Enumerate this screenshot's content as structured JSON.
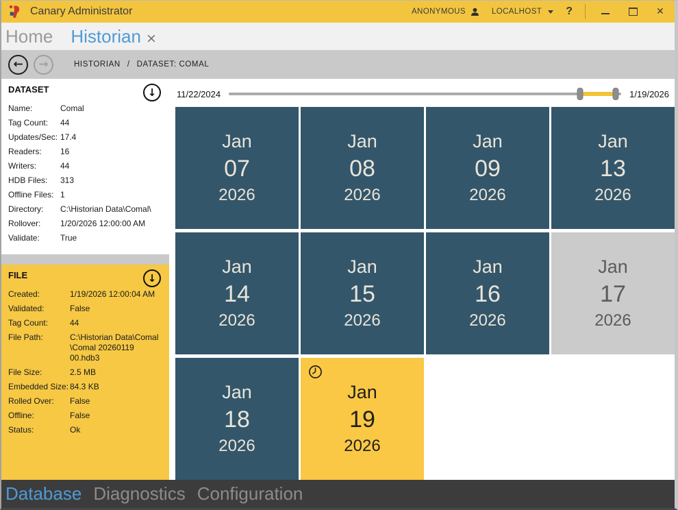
{
  "titlebar": {
    "title": "Canary Administrator",
    "user": "ANONYMOUS",
    "host": "LOCALHOST",
    "help": "?"
  },
  "icons": {
    "back": "←",
    "forward": "→",
    "collapse": "↓",
    "close_tab": "×",
    "close_win": "✕"
  },
  "tabs": [
    {
      "label": "Home",
      "active": false,
      "closable": false
    },
    {
      "label": "Historian",
      "active": true,
      "closable": true
    }
  ],
  "nav": {
    "separator": "/",
    "breadcrumb": [
      "HISTORIAN",
      "DATASET: COMAL"
    ]
  },
  "dataset_panel": {
    "title": "DATASET",
    "rows": [
      {
        "label": "Name:",
        "value": "Comal"
      },
      {
        "label": "Tag Count:",
        "value": "44"
      },
      {
        "label": "Updates/Sec:",
        "value": "17.4"
      },
      {
        "label": "Readers:",
        "value": "16"
      },
      {
        "label": "Writers:",
        "value": "44"
      },
      {
        "label": "HDB Files:",
        "value": "313"
      },
      {
        "label": "Offline Files:",
        "value": "1"
      },
      {
        "label": "Directory:",
        "value": "C:\\Historian Data\\Comal\\"
      },
      {
        "label": "Rollover:",
        "value": "1/20/2026 12:00:00 AM"
      },
      {
        "label": "Validate:",
        "value": "True"
      }
    ]
  },
  "file_panel": {
    "title": "FILE",
    "rows": [
      {
        "label": "Created:",
        "value": "1/19/2026 12:00:04 AM"
      },
      {
        "label": "Validated:",
        "value": "False"
      },
      {
        "label": "Tag Count:",
        "value": "44"
      },
      {
        "label": "File Path:",
        "value": "C:\\Historian Data\\Comal\n\\Comal 20260119 00.hdb3"
      },
      {
        "label": "File Size:",
        "value": "2.5 MB"
      },
      {
        "label": "Embedded Size:",
        "value": "84.3 KB"
      },
      {
        "label": "Rolled Over:",
        "value": "False"
      },
      {
        "label": "Offline:",
        "value": "False"
      },
      {
        "label": "Status:",
        "value": "Ok"
      }
    ]
  },
  "slider": {
    "start_label": "11/22/2024",
    "end_label": "1/19/2026",
    "range_start_pct": 89.5,
    "range_end_pct": 98.5
  },
  "calendar": {
    "tiles": [
      {
        "month": "Jan",
        "day": "07",
        "year": "2026",
        "state": "available",
        "clock": false
      },
      {
        "month": "Jan",
        "day": "08",
        "year": "2026",
        "state": "available",
        "clock": false
      },
      {
        "month": "Jan",
        "day": "09",
        "year": "2026",
        "state": "available",
        "clock": false
      },
      {
        "month": "Jan",
        "day": "13",
        "year": "2026",
        "state": "available",
        "clock": false
      },
      {
        "month": "Jan",
        "day": "14",
        "year": "2026",
        "state": "available",
        "clock": false
      },
      {
        "month": "Jan",
        "day": "15",
        "year": "2026",
        "state": "available",
        "clock": false
      },
      {
        "month": "Jan",
        "day": "16",
        "year": "2026",
        "state": "available",
        "clock": false
      },
      {
        "month": "Jan",
        "day": "17",
        "year": "2026",
        "state": "offline",
        "clock": false
      },
      {
        "month": "Jan",
        "day": "18",
        "year": "2026",
        "state": "available",
        "clock": false
      },
      {
        "month": "Jan",
        "day": "19",
        "year": "2026",
        "state": "active",
        "clock": true
      }
    ]
  },
  "bottom_tabs": [
    {
      "label": "Database",
      "active": true
    },
    {
      "label": "Diagnostics",
      "active": false
    },
    {
      "label": "Configuration",
      "active": false
    }
  ],
  "colors": {
    "titlebar_yellow": "#F3C53F",
    "panel_yellow": "#F6C844",
    "tile_yellow": "#FAC844",
    "tile_teal": "#33566A",
    "tile_gray": "#CBCBCB",
    "active_blue": "#4D9BD8",
    "bottombar_gray": "#3C3C3C"
  }
}
